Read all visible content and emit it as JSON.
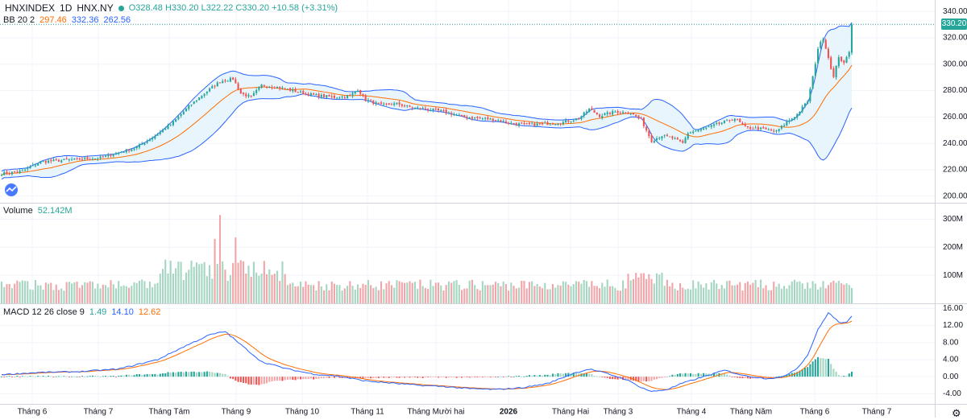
{
  "header": {
    "symbol": "HNXINDEX",
    "interval": "1D",
    "exchange": "HNX.NY",
    "ohlc": "O328.48 H330.20 L322.22 C330.20 +10.58 (+3.31%)",
    "bb_label": "BB 20 2",
    "bb_mid": "297.46",
    "bb_up": "332.36",
    "bb_low": "262.56",
    "volume_label": "Volume",
    "volume_value": "52.142M",
    "macd_label": "MACD 12 26 close 9",
    "macd_hist": "1.49",
    "macd_line": "14.10",
    "macd_signal": "12.62"
  },
  "last_price": "330.20",
  "price_ticks": [
    "340.00",
    "320.00",
    "300.00",
    "280.00",
    "260.00",
    "240.00",
    "220.00",
    "200.00"
  ],
  "volume_ticks": [
    "300M",
    "200M",
    "100M"
  ],
  "macd_ticks": [
    "16.00",
    "12.00",
    "8.00",
    "4.00",
    "0.00",
    "-4.00"
  ],
  "time_ticks": [
    "Tháng 6",
    "Tháng 7",
    "Tháng Tám",
    "Tháng 9",
    "Tháng 10",
    "Tháng 11",
    "Tháng Mười hai",
    "2026",
    "Tháng Hai",
    "Tháng 3",
    "Tháng 4",
    "Tháng Năm",
    "Tháng 6",
    "Tháng 7"
  ],
  "colors": {
    "up": "#26a69a",
    "down": "#ef5350",
    "up_vol": "#a5d6c1",
    "down_vol": "#f2a5a8",
    "bb_band": "#2962ff",
    "bb_mid": "#ff6d00",
    "bb_fill": "#e3f2fd",
    "macd_line": "#2962ff",
    "signal_line": "#ff6d00",
    "grid": "#f0f3fa"
  },
  "chart_data": [
    {
      "type": "candlestick",
      "title": "HNXINDEX 1D HNX.NY",
      "ylim": [
        195,
        345
      ],
      "close_anchors": [
        [
          0,
          217
        ],
        [
          8,
          219
        ],
        [
          15,
          226
        ],
        [
          22,
          227
        ],
        [
          30,
          228
        ],
        [
          38,
          229
        ],
        [
          45,
          233
        ],
        [
          52,
          237
        ],
        [
          60,
          247
        ],
        [
          66,
          256
        ],
        [
          72,
          268
        ],
        [
          78,
          278
        ],
        [
          84,
          287
        ],
        [
          89,
          289
        ],
        [
          92,
          278
        ],
        [
          96,
          275
        ],
        [
          100,
          284
        ],
        [
          105,
          283
        ],
        [
          110,
          281
        ],
        [
          116,
          278
        ],
        [
          122,
          276
        ],
        [
          128,
          275
        ],
        [
          134,
          276
        ],
        [
          137,
          281
        ],
        [
          140,
          273
        ],
        [
          146,
          269
        ],
        [
          152,
          270
        ],
        [
          158,
          267
        ],
        [
          164,
          266
        ],
        [
          170,
          264
        ],
        [
          178,
          260
        ],
        [
          184,
          259
        ],
        [
          190,
          258
        ],
        [
          196,
          255
        ],
        [
          204,
          254
        ],
        [
          210,
          255
        ],
        [
          216,
          256
        ],
        [
          222,
          259
        ],
        [
          226,
          266
        ],
        [
          230,
          261
        ],
        [
          236,
          264
        ],
        [
          242,
          263
        ],
        [
          246,
          258
        ],
        [
          250,
          242
        ],
        [
          254,
          246
        ],
        [
          258,
          244
        ],
        [
          262,
          240
        ],
        [
          264,
          248
        ],
        [
          270,
          251
        ],
        [
          276,
          255
        ],
        [
          282,
          259
        ],
        [
          286,
          252
        ],
        [
          292,
          251
        ],
        [
          298,
          249
        ],
        [
          302,
          256
        ],
        [
          306,
          262
        ],
        [
          310,
          272
        ],
        [
          312,
          290
        ],
        [
          314,
          312
        ],
        [
          316,
          320
        ],
        [
          318,
          305
        ],
        [
          320,
          290
        ],
        [
          322,
          306
        ],
        [
          324,
          300
        ],
        [
          326,
          310
        ],
        [
          327,
          330
        ]
      ],
      "n_bars": 328
    },
    {
      "type": "line",
      "title": "BB 20 2",
      "series": [
        {
          "name": "basis",
          "last": 297.46
        },
        {
          "name": "upper",
          "last": 332.36
        },
        {
          "name": "lower",
          "last": 262.56
        }
      ]
    },
    {
      "type": "bar",
      "title": "Volume",
      "last": 52.142,
      "unit": "M",
      "ylim": [
        0,
        330
      ]
    },
    {
      "type": "line",
      "title": "MACD 12 26 close 9",
      "ylim": [
        -6,
        17
      ],
      "macd_anchors": [
        [
          0,
          0.5
        ],
        [
          15,
          1.0
        ],
        [
          30,
          1.2
        ],
        [
          45,
          1.8
        ],
        [
          60,
          4.0
        ],
        [
          70,
          7.0
        ],
        [
          80,
          9.8
        ],
        [
          86,
          10.6
        ],
        [
          92,
          7.5
        ],
        [
          100,
          3.5
        ],
        [
          110,
          1.8
        ],
        [
          120,
          0.6
        ],
        [
          130,
          0.1
        ],
        [
          140,
          -1.0
        ],
        [
          150,
          -1.5
        ],
        [
          160,
          -2.0
        ],
        [
          170,
          -2.3
        ],
        [
          180,
          -2.8
        ],
        [
          190,
          -3.0
        ],
        [
          200,
          -2.6
        ],
        [
          210,
          -1.6
        ],
        [
          220,
          0.8
        ],
        [
          226,
          1.8
        ],
        [
          232,
          0.9
        ],
        [
          240,
          -0.6
        ],
        [
          246,
          -2.5
        ],
        [
          250,
          -3.5
        ],
        [
          256,
          -3.0
        ],
        [
          262,
          -1.5
        ],
        [
          270,
          0.0
        ],
        [
          278,
          1.5
        ],
        [
          286,
          0.2
        ],
        [
          294,
          -0.4
        ],
        [
          300,
          -0.2
        ],
        [
          306,
          2.0
        ],
        [
          310,
          5.0
        ],
        [
          314,
          11.0
        ],
        [
          318,
          15.0
        ],
        [
          322,
          12.8
        ],
        [
          325,
          12.6
        ],
        [
          327,
          14.1
        ]
      ],
      "series": [
        {
          "name": "histogram",
          "last": 1.49
        },
        {
          "name": "macd",
          "last": 14.1
        },
        {
          "name": "signal",
          "last": 12.62
        }
      ]
    }
  ]
}
